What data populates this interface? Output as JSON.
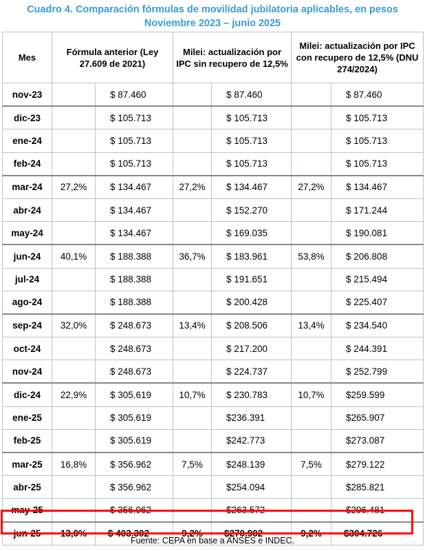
{
  "title": {
    "line1": "Cuadro 4. Comparación fórmulas de movilidad jubilatoria aplicables, en pesos",
    "line2": "Noviembre 2023 – junio 2025"
  },
  "headers": {
    "mes": "Mes",
    "formula_anterior": "Fórmula anterior (Ley 27.609 de 2021)",
    "milei_sin": "Milei: actualización por IPC sin recupero de 12,5%",
    "milei_con": "Milei: actualización por IPC con recupero de 12,5% (DNU 274/2024)"
  },
  "rows": [
    {
      "mes": "nov-23",
      "p1": "",
      "v1": "$ 87.460",
      "p2": "",
      "v2": "$ 87.460",
      "p3": "",
      "v3": "$ 87.460"
    },
    {
      "mes": "dic-23",
      "p1": "",
      "v1": "$ 105.713",
      "p2": "",
      "v2": "$ 105.713",
      "p3": "",
      "v3": "$ 105.713"
    },
    {
      "mes": "ene-24",
      "p1": "",
      "v1": "$ 105.713",
      "p2": "",
      "v2": "$ 105.713",
      "p3": "",
      "v3": "$ 105.713"
    },
    {
      "mes": "feb-24",
      "p1": "",
      "v1": "$ 105.713",
      "p2": "",
      "v2": "$ 105.713",
      "p3": "",
      "v3": "$ 105.713"
    },
    {
      "mes": "mar-24",
      "p1": "27,2%",
      "v1": "$ 134.467",
      "p2": "27,2%",
      "v2": "$ 134.467",
      "p3": "27,2%",
      "v3": "$ 134.467"
    },
    {
      "mes": "abr-24",
      "p1": "",
      "v1": "$ 134.467",
      "p2": "",
      "v2": "$ 152.270",
      "p3": "",
      "v3": "$ 171.244"
    },
    {
      "mes": "may-24",
      "p1": "",
      "v1": "$ 134.467",
      "p2": "",
      "v2": "$ 169.035",
      "p3": "",
      "v3": "$ 190.081"
    },
    {
      "mes": "jun-24",
      "p1": "40,1%",
      "v1": "$ 188.388",
      "p2": "36,7%",
      "v2": "$ 183.961",
      "p3": "53,8%",
      "v3": "$ 206.808"
    },
    {
      "mes": "jul-24",
      "p1": "",
      "v1": "$ 188.388",
      "p2": "",
      "v2": "$ 191.651",
      "p3": "",
      "v3": "$ 215.494"
    },
    {
      "mes": "ago-24",
      "p1": "",
      "v1": "$ 188.388",
      "p2": "",
      "v2": "$ 200.428",
      "p3": "",
      "v3": "$ 225.407"
    },
    {
      "mes": "sep-24",
      "p1": "32,0%",
      "v1": "$ 248.673",
      "p2": "13,4%",
      "v2": "$ 208.506",
      "p3": "13,4%",
      "v3": "$ 234.540"
    },
    {
      "mes": "oct-24",
      "p1": "",
      "v1": "$ 248.673",
      "p2": "",
      "v2": "$ 217.200",
      "p3": "",
      "v3": "$ 244.391"
    },
    {
      "mes": "nov-24",
      "p1": "",
      "v1": "$ 248.673",
      "p2": "",
      "v2": "$ 224.737",
      "p3": "",
      "v3": "$ 252.799"
    },
    {
      "mes": "dic-24",
      "p1": "22,9%",
      "v1": "$ 305.619",
      "p2": "10,7%",
      "v2": "$ 230.783",
      "p3": "10,7%",
      "v3": "$259.599"
    },
    {
      "mes": "ene-25",
      "p1": "",
      "v1": "$ 305.619",
      "p2": "",
      "v2": "$236.391",
      "p3": "",
      "v3": "$265.907"
    },
    {
      "mes": "feb-25",
      "p1": "",
      "v1": "$ 305.619",
      "p2": "",
      "v2": "$242.773",
      "p3": "",
      "v3": "$273.087"
    },
    {
      "mes": "mar-25",
      "p1": "16,8%",
      "v1": "$ 356.962",
      "p2": "7,5%",
      "v2": "$248.139",
      "p3": "7,5%",
      "v3": "$279.122"
    },
    {
      "mes": "abr-25",
      "p1": "",
      "v1": "$ 356.962",
      "p2": "",
      "v2": "$254.094",
      "p3": "",
      "v3": "$285.821"
    },
    {
      "mes": "may-25",
      "p1": "",
      "v1": "$ 356.962",
      "p2": "",
      "v2": "$263.572",
      "p3": "",
      "v3": "$296.481"
    },
    {
      "mes": "jun-25",
      "p1": "13,0%",
      "v1": "$ 403.302",
      "p2": "9,2%",
      "v2": "$270.902",
      "p3": "9,2%",
      "v3": "$304.726"
    }
  ],
  "highlight_color": "#ff0000",
  "source": "Fuente: CEPA en base a ANSES e INDEC."
}
